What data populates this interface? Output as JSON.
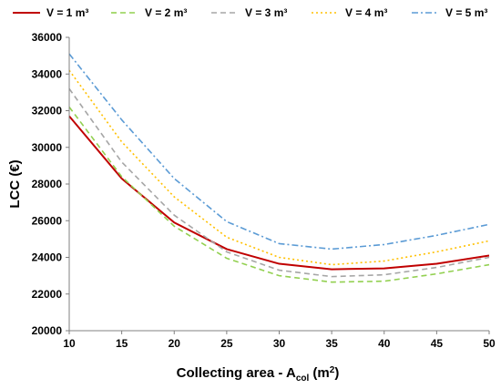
{
  "chart_data": {
    "type": "line",
    "title": "",
    "xlabel": {
      "main": "Collecting area - A",
      "sub": "col",
      "unit_open": " (m",
      "sup": "2",
      "unit_close": ")"
    },
    "ylabel": "LCC (€)",
    "x": [
      10,
      15,
      20,
      25,
      30,
      35,
      40,
      45,
      50
    ],
    "xlim": [
      10,
      50
    ],
    "ylim": [
      20000,
      36000
    ],
    "xticks": [
      "10",
      "15",
      "20",
      "25",
      "30",
      "35",
      "40",
      "45",
      "50"
    ],
    "yticks": [
      "20000",
      "22000",
      "24000",
      "26000",
      "28000",
      "30000",
      "32000",
      "34000",
      "36000"
    ],
    "grid": false,
    "legend_position": "top",
    "series": [
      {
        "name": "V = 1 m³",
        "color": "#C00000",
        "dash": "solid",
        "values": [
          31700,
          28300,
          25900,
          24450,
          23650,
          23350,
          23400,
          23650,
          24100
        ]
      },
      {
        "name": "V = 2 m³",
        "color": "#92D050",
        "dash": "dashed",
        "values": [
          32200,
          28400,
          25700,
          23950,
          23000,
          22650,
          22700,
          23100,
          23600
        ]
      },
      {
        "name": "V = 3 m³",
        "color": "#A6A6A6",
        "dash": "dashed",
        "values": [
          33200,
          29200,
          26300,
          24300,
          23300,
          22950,
          23050,
          23450,
          24000
        ]
      },
      {
        "name": "V = 4 m³",
        "color": "#FFC000",
        "dash": "dotted",
        "values": [
          34200,
          30300,
          27300,
          25100,
          24000,
          23600,
          23800,
          24300,
          24900
        ]
      },
      {
        "name": "V = 5 m³",
        "color": "#5B9BD5",
        "dash": "dashdot",
        "values": [
          35100,
          31500,
          28300,
          25950,
          24750,
          24450,
          24700,
          25200,
          25800
        ]
      }
    ]
  }
}
